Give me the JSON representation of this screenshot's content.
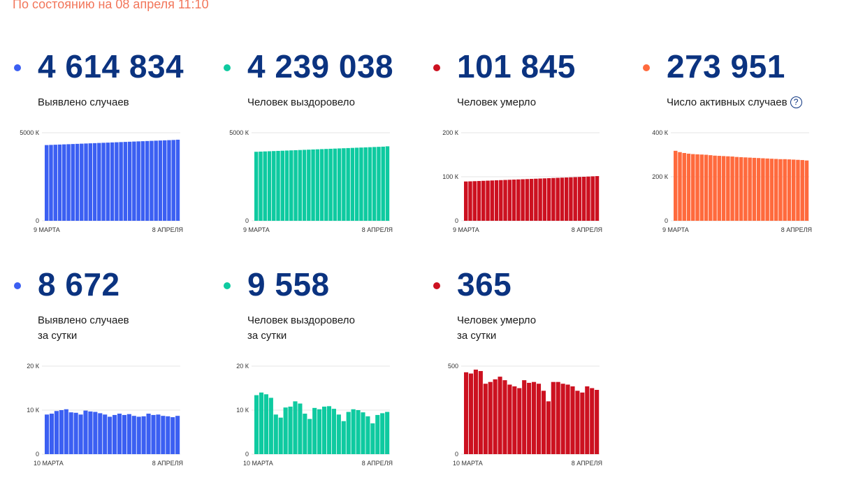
{
  "status_text": "По состоянию на 08 апреля 11:10",
  "cards": [
    {
      "value": "4 614 834",
      "label_lines": [
        "Выявлено случаев"
      ],
      "color": "#3b5ff2",
      "chart_data": {
        "type": "bar",
        "x_start": "9 МАРТА",
        "x_end": "8 АПРЕЛЯ",
        "ylim": [
          0,
          5000
        ],
        "ticks": [
          {
            "v": 0,
            "t": "0"
          },
          {
            "v": 5000,
            "t": "5000 К"
          }
        ],
        "values": [
          4300,
          4310,
          4320,
          4330,
          4340,
          4350,
          4360,
          4370,
          4380,
          4390,
          4400,
          4410,
          4420,
          4430,
          4440,
          4450,
          4460,
          4470,
          4480,
          4490,
          4500,
          4510,
          4520,
          4530,
          4540,
          4550,
          4560,
          4570,
          4580,
          4590,
          4605
        ]
      }
    },
    {
      "value": "4 239 038",
      "label_lines": [
        "Человек выздоровело"
      ],
      "color": "#0ecaa0",
      "chart_data": {
        "type": "bar",
        "x_start": "9 МАРТА",
        "x_end": "8 АПРЕЛЯ",
        "ylim": [
          0,
          5000
        ],
        "ticks": [
          {
            "v": 0,
            "t": "0"
          },
          {
            "v": 5000,
            "t": "5000 К"
          }
        ],
        "values": [
          3920,
          3930,
          3940,
          3950,
          3960,
          3970,
          3980,
          3990,
          4000,
          4010,
          4020,
          4030,
          4040,
          4050,
          4060,
          4070,
          4080,
          4090,
          4100,
          4110,
          4120,
          4130,
          4140,
          4150,
          4160,
          4170,
          4180,
          4190,
          4200,
          4210,
          4230
        ]
      }
    },
    {
      "value": "101 845",
      "label_lines": [
        "Человек умерло"
      ],
      "color": "#cc1120",
      "chart_data": {
        "type": "bar",
        "x_start": "9 МАРТА",
        "x_end": "8 АПРЕЛЯ",
        "ylim": [
          0,
          200
        ],
        "ticks": [
          {
            "v": 0,
            "t": "0"
          },
          {
            "v": 100,
            "t": "100 К"
          },
          {
            "v": 200,
            "t": "200 К"
          }
        ],
        "values": [
          89.3,
          89.6,
          90,
          90.4,
          90.8,
          91.2,
          91.6,
          92,
          92.4,
          92.8,
          93.2,
          93.6,
          94,
          94.4,
          94.8,
          95.2,
          95.6,
          96,
          96.4,
          96.8,
          97.2,
          97.6,
          98,
          98.4,
          98.8,
          99.2,
          99.6,
          100,
          100.5,
          101,
          101.5
        ]
      }
    },
    {
      "value": "273 951",
      "label_lines": [
        "Число активных случаев"
      ],
      "help": "?",
      "color": "#ff6a3d",
      "chart_data": {
        "type": "bar",
        "x_start": "9 МАРТА",
        "x_end": "8 АПРЕЛЯ",
        "ylim": [
          0,
          400
        ],
        "ticks": [
          {
            "v": 0,
            "t": "0"
          },
          {
            "v": 200,
            "t": "200 К"
          },
          {
            "v": 400,
            "t": "400 К"
          }
        ],
        "values": [
          318,
          312,
          308,
          305,
          303,
          302,
          301,
          300,
          298,
          296,
          295,
          294,
          293,
          292,
          290,
          289,
          288,
          287,
          286,
          285,
          284,
          283,
          282,
          281,
          280,
          280,
          279,
          278,
          277,
          276,
          274
        ]
      }
    },
    {
      "value": "8 672",
      "label_lines": [
        "Выявлено случаев",
        "за сутки"
      ],
      "color": "#3b5ff2",
      "chart_data": {
        "type": "bar",
        "x_start": "10 МАРТА",
        "x_end": "8 АПРЕЛЯ",
        "ylim": [
          0,
          20
        ],
        "ticks": [
          {
            "v": 0,
            "t": "0"
          },
          {
            "v": 10,
            "t": "10 К"
          },
          {
            "v": 20,
            "t": "20 К"
          }
        ],
        "values": [
          9.0,
          9.2,
          9.8,
          10.0,
          10.2,
          9.5,
          9.4,
          9.0,
          9.9,
          9.7,
          9.6,
          9.3,
          9.0,
          8.5,
          8.9,
          9.2,
          8.9,
          9.1,
          8.7,
          8.5,
          8.6,
          9.2,
          8.9,
          9.0,
          8.7,
          8.6,
          8.4,
          8.7
        ]
      }
    },
    {
      "value": "9 558",
      "label_lines": [
        "Человек выздоровело",
        "за сутки"
      ],
      "color": "#0ecaa0",
      "chart_data": {
        "type": "bar",
        "x_start": "10 МАРТА",
        "x_end": "8 АПРЕЛЯ",
        "ylim": [
          0,
          20
        ],
        "ticks": [
          {
            "v": 0,
            "t": "0"
          },
          {
            "v": 10,
            "t": "10 К"
          },
          {
            "v": 20,
            "t": "20 К"
          }
        ],
        "values": [
          13.4,
          14.0,
          13.6,
          12.8,
          9.0,
          8.3,
          10.6,
          10.8,
          12.0,
          11.5,
          9.2,
          8.0,
          10.5,
          10.2,
          10.8,
          10.9,
          10.3,
          9.0,
          7.5,
          9.6,
          10.2,
          10.0,
          9.5,
          8.6,
          7.0,
          8.9,
          9.3,
          9.6
        ]
      }
    },
    {
      "value": "365",
      "label_lines": [
        "Человек умерло",
        "за сутки"
      ],
      "color": "#cc1120",
      "chart_data": {
        "type": "bar",
        "x_start": "10 МАРТА",
        "x_end": "8 АПРЕЛЯ",
        "ylim": [
          0,
          500
        ],
        "ticks": [
          {
            "v": 0,
            "t": "0"
          },
          {
            "v": 500,
            "t": "500"
          }
        ],
        "values": [
          465,
          458,
          480,
          472,
          400,
          410,
          425,
          440,
          420,
          395,
          385,
          375,
          420,
          405,
          410,
          400,
          360,
          300,
          410,
          410,
          400,
          395,
          385,
          360,
          350,
          385,
          375,
          365
        ]
      }
    }
  ]
}
